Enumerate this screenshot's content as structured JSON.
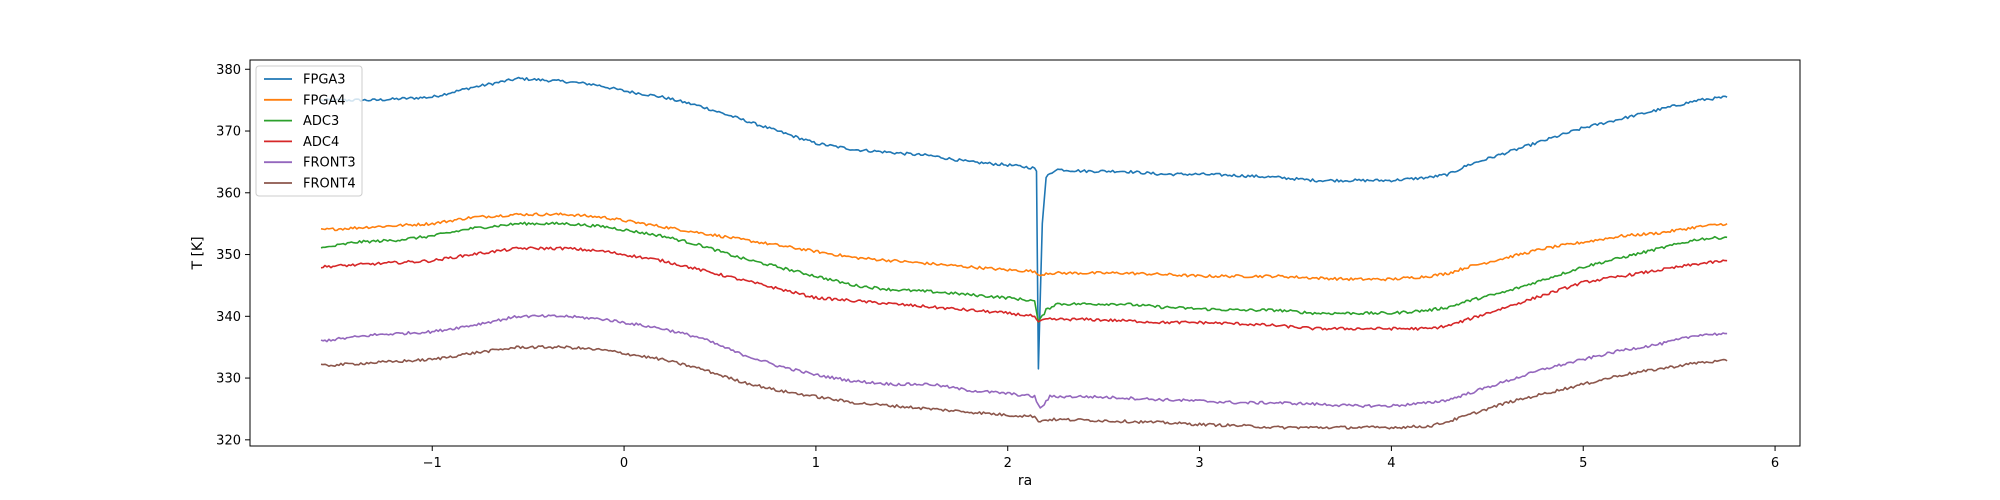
{
  "chart_data": {
    "type": "line",
    "title": "",
    "xlabel": "ra",
    "ylabel": "T [K]",
    "xlim": [
      -1.95,
      6.13
    ],
    "ylim": [
      319,
      381.5
    ],
    "xticks": [
      -1,
      0,
      1,
      2,
      3,
      4,
      5,
      6
    ],
    "yticks": [
      320,
      330,
      340,
      350,
      360,
      370,
      380
    ],
    "grid": false,
    "legend_position": "top-left",
    "series": [
      {
        "name": "FPGA3",
        "color": "#1f77b4",
        "points": [
          [
            -1.58,
            375.0
          ],
          [
            -1.3,
            375.0
          ],
          [
            -1.0,
            375.5
          ],
          [
            -0.8,
            377.0
          ],
          [
            -0.55,
            378.5
          ],
          [
            -0.3,
            378.0
          ],
          [
            -0.15,
            377.5
          ],
          [
            0.0,
            376.5
          ],
          [
            0.2,
            375.5
          ],
          [
            0.4,
            374.0
          ],
          [
            0.6,
            372.0
          ],
          [
            0.8,
            370.0
          ],
          [
            1.0,
            368.0
          ],
          [
            1.2,
            367.0
          ],
          [
            1.4,
            366.5
          ],
          [
            1.6,
            366.0
          ],
          [
            1.8,
            365.0
          ],
          [
            2.0,
            364.5
          ],
          [
            2.14,
            364.0
          ],
          [
            2.15,
            363.5
          ],
          [
            2.16,
            331.5
          ],
          [
            2.18,
            355.0
          ],
          [
            2.2,
            362.5
          ],
          [
            2.25,
            363.8
          ],
          [
            2.4,
            363.5
          ],
          [
            2.6,
            363.5
          ],
          [
            2.8,
            363.0
          ],
          [
            3.0,
            363.0
          ],
          [
            3.2,
            362.8
          ],
          [
            3.4,
            362.5
          ],
          [
            3.6,
            362.0
          ],
          [
            3.8,
            362.0
          ],
          [
            4.0,
            362.0
          ],
          [
            4.2,
            362.5
          ],
          [
            4.3,
            363.0
          ],
          [
            4.4,
            364.5
          ],
          [
            4.6,
            366.5
          ],
          [
            4.8,
            368.5
          ],
          [
            5.0,
            370.5
          ],
          [
            5.2,
            372.0
          ],
          [
            5.4,
            373.5
          ],
          [
            5.6,
            375.0
          ],
          [
            5.75,
            375.5
          ]
        ]
      },
      {
        "name": "FPGA4",
        "color": "#ff7f0e",
        "points": [
          [
            -1.58,
            354.0
          ],
          [
            -1.3,
            354.5
          ],
          [
            -1.0,
            355.0
          ],
          [
            -0.8,
            356.0
          ],
          [
            -0.55,
            356.5
          ],
          [
            -0.3,
            356.5
          ],
          [
            -0.1,
            356.0
          ],
          [
            0.0,
            355.5
          ],
          [
            0.2,
            354.5
          ],
          [
            0.4,
            353.5
          ],
          [
            0.6,
            352.5
          ],
          [
            0.8,
            351.5
          ],
          [
            1.0,
            350.5
          ],
          [
            1.2,
            349.5
          ],
          [
            1.4,
            349.0
          ],
          [
            1.6,
            348.5
          ],
          [
            1.8,
            348.0
          ],
          [
            2.0,
            347.5
          ],
          [
            2.14,
            347.3
          ],
          [
            2.16,
            346.5
          ],
          [
            2.2,
            347.0
          ],
          [
            2.4,
            347.0
          ],
          [
            2.6,
            347.0
          ],
          [
            2.8,
            346.8
          ],
          [
            3.0,
            346.5
          ],
          [
            3.2,
            346.5
          ],
          [
            3.4,
            346.5
          ],
          [
            3.6,
            346.2
          ],
          [
            3.8,
            346.0
          ],
          [
            4.0,
            346.0
          ],
          [
            4.2,
            346.5
          ],
          [
            4.3,
            347.0
          ],
          [
            4.4,
            348.0
          ],
          [
            4.6,
            349.5
          ],
          [
            4.8,
            351.0
          ],
          [
            5.0,
            352.0
          ],
          [
            5.2,
            353.0
          ],
          [
            5.4,
            353.5
          ],
          [
            5.6,
            354.5
          ],
          [
            5.75,
            355.0
          ]
        ]
      },
      {
        "name": "ADC3",
        "color": "#2ca02c",
        "points": [
          [
            -1.58,
            351.0
          ],
          [
            -1.4,
            352.0
          ],
          [
            -1.2,
            352.3
          ],
          [
            -1.0,
            353.0
          ],
          [
            -0.8,
            354.2
          ],
          [
            -0.55,
            355.0
          ],
          [
            -0.3,
            355.0
          ],
          [
            -0.1,
            354.5
          ],
          [
            0.0,
            354.0
          ],
          [
            0.2,
            353.0
          ],
          [
            0.4,
            351.5
          ],
          [
            0.6,
            349.5
          ],
          [
            0.8,
            348.0
          ],
          [
            1.0,
            346.5
          ],
          [
            1.2,
            345.0
          ],
          [
            1.4,
            344.3
          ],
          [
            1.6,
            344.0
          ],
          [
            1.8,
            343.5
          ],
          [
            2.0,
            343.0
          ],
          [
            2.14,
            342.5
          ],
          [
            2.16,
            339.0
          ],
          [
            2.2,
            341.0
          ],
          [
            2.25,
            342.0
          ],
          [
            2.4,
            342.0
          ],
          [
            2.6,
            342.0
          ],
          [
            2.8,
            341.5
          ],
          [
            3.0,
            341.2
          ],
          [
            3.2,
            341.0
          ],
          [
            3.4,
            341.0
          ],
          [
            3.6,
            340.5
          ],
          [
            3.8,
            340.5
          ],
          [
            4.0,
            340.5
          ],
          [
            4.2,
            341.0
          ],
          [
            4.3,
            341.5
          ],
          [
            4.4,
            342.5
          ],
          [
            4.6,
            344.0
          ],
          [
            4.8,
            346.0
          ],
          [
            5.0,
            348.0
          ],
          [
            5.2,
            349.5
          ],
          [
            5.4,
            351.0
          ],
          [
            5.6,
            352.5
          ],
          [
            5.75,
            352.8
          ]
        ]
      },
      {
        "name": "ADC4",
        "color": "#d62728",
        "points": [
          [
            -1.58,
            348.0
          ],
          [
            -1.3,
            348.5
          ],
          [
            -1.0,
            349.0
          ],
          [
            -0.8,
            350.0
          ],
          [
            -0.55,
            351.0
          ],
          [
            -0.3,
            351.0
          ],
          [
            -0.1,
            350.5
          ],
          [
            0.0,
            350.0
          ],
          [
            0.2,
            349.0
          ],
          [
            0.4,
            347.5
          ],
          [
            0.6,
            346.0
          ],
          [
            0.8,
            344.5
          ],
          [
            1.0,
            343.0
          ],
          [
            1.2,
            342.5
          ],
          [
            1.4,
            342.0
          ],
          [
            1.6,
            341.5
          ],
          [
            1.8,
            341.0
          ],
          [
            2.0,
            340.5
          ],
          [
            2.14,
            340.0
          ],
          [
            2.16,
            339.0
          ],
          [
            2.2,
            339.5
          ],
          [
            2.4,
            339.5
          ],
          [
            2.6,
            339.3
          ],
          [
            2.8,
            339.0
          ],
          [
            3.0,
            339.0
          ],
          [
            3.2,
            338.8
          ],
          [
            3.4,
            338.5
          ],
          [
            3.6,
            338.0
          ],
          [
            3.8,
            338.0
          ],
          [
            4.0,
            338.0
          ],
          [
            4.2,
            338.0
          ],
          [
            4.3,
            338.5
          ],
          [
            4.4,
            339.5
          ],
          [
            4.6,
            341.5
          ],
          [
            4.8,
            343.5
          ],
          [
            5.0,
            345.5
          ],
          [
            5.2,
            346.5
          ],
          [
            5.4,
            347.5
          ],
          [
            5.6,
            348.5
          ],
          [
            5.75,
            349.0
          ]
        ]
      },
      {
        "name": "FRONT3",
        "color": "#9467bd",
        "points": [
          [
            -1.58,
            336.0
          ],
          [
            -1.3,
            337.0
          ],
          [
            -1.0,
            337.5
          ],
          [
            -0.8,
            338.5
          ],
          [
            -0.55,
            340.0
          ],
          [
            -0.3,
            340.0
          ],
          [
            -0.1,
            339.5
          ],
          [
            0.0,
            339.0
          ],
          [
            0.2,
            338.0
          ],
          [
            0.4,
            336.5
          ],
          [
            0.6,
            334.0
          ],
          [
            0.8,
            332.0
          ],
          [
            1.0,
            330.5
          ],
          [
            1.2,
            329.5
          ],
          [
            1.4,
            329.0
          ],
          [
            1.6,
            329.0
          ],
          [
            1.8,
            328.0
          ],
          [
            2.0,
            327.5
          ],
          [
            2.14,
            327.0
          ],
          [
            2.17,
            325.0
          ],
          [
            2.22,
            327.0
          ],
          [
            2.4,
            327.0
          ],
          [
            2.6,
            326.8
          ],
          [
            2.8,
            326.5
          ],
          [
            3.0,
            326.3
          ],
          [
            3.2,
            326.0
          ],
          [
            3.4,
            326.0
          ],
          [
            3.6,
            325.8
          ],
          [
            3.8,
            325.5
          ],
          [
            4.0,
            325.5
          ],
          [
            4.2,
            326.0
          ],
          [
            4.3,
            326.5
          ],
          [
            4.4,
            327.5
          ],
          [
            4.6,
            329.5
          ],
          [
            4.8,
            331.5
          ],
          [
            5.0,
            333.0
          ],
          [
            5.2,
            334.5
          ],
          [
            5.4,
            335.5
          ],
          [
            5.6,
            337.0
          ],
          [
            5.75,
            337.2
          ]
        ]
      },
      {
        "name": "FRONT4",
        "color": "#8c564b",
        "points": [
          [
            -1.58,
            332.0
          ],
          [
            -1.3,
            332.5
          ],
          [
            -1.0,
            333.0
          ],
          [
            -0.8,
            334.0
          ],
          [
            -0.55,
            335.0
          ],
          [
            -0.3,
            335.0
          ],
          [
            -0.1,
            334.5
          ],
          [
            0.0,
            334.0
          ],
          [
            0.2,
            333.0
          ],
          [
            0.4,
            331.5
          ],
          [
            0.6,
            329.5
          ],
          [
            0.8,
            328.0
          ],
          [
            1.0,
            327.0
          ],
          [
            1.2,
            326.0
          ],
          [
            1.4,
            325.5
          ],
          [
            1.6,
            325.0
          ],
          [
            1.8,
            324.5
          ],
          [
            2.0,
            324.0
          ],
          [
            2.14,
            323.8
          ],
          [
            2.16,
            323.0
          ],
          [
            2.22,
            323.3
          ],
          [
            2.4,
            323.2
          ],
          [
            2.6,
            323.0
          ],
          [
            2.8,
            322.8
          ],
          [
            3.0,
            322.5
          ],
          [
            3.2,
            322.3
          ],
          [
            3.4,
            322.0
          ],
          [
            3.6,
            322.0
          ],
          [
            3.8,
            322.0
          ],
          [
            4.0,
            322.0
          ],
          [
            4.2,
            322.2
          ],
          [
            4.3,
            323.0
          ],
          [
            4.4,
            324.0
          ],
          [
            4.6,
            326.0
          ],
          [
            4.8,
            327.5
          ],
          [
            5.0,
            329.0
          ],
          [
            5.2,
            330.5
          ],
          [
            5.4,
            331.5
          ],
          [
            5.6,
            332.5
          ],
          [
            5.75,
            332.8
          ]
        ]
      }
    ]
  }
}
